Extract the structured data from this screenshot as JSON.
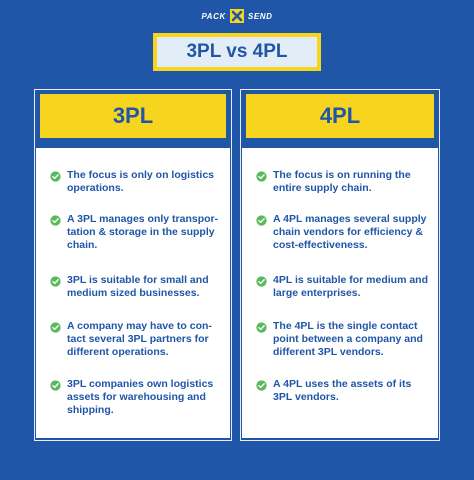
{
  "brand": {
    "left_word": "PACK",
    "right_word": "SEND",
    "logo_icon": "x-cross-icon"
  },
  "title": "3PL vs 4PL",
  "colors": {
    "background": "#1f56a8",
    "accent_yellow": "#f7d51f",
    "text_blue": "#1f56a8",
    "check_green": "#5bb85b"
  },
  "columns": [
    {
      "heading": "3PL",
      "items": [
        "The focus is only on logistics operations.",
        "A 3PL manages only transpor-tation & storage in the supply chain.",
        "3PL is suitable for small and medium sized businesses.",
        "A company may have to con-tact several 3PL partners for different operations.",
        "3PL companies own logistics assets for warehousing and shipping."
      ]
    },
    {
      "heading": "4PL",
      "items": [
        "The focus is on running the entire supply chain.",
        "A 4PL manages several supply chain vendors for efficiency & cost-effectiveness.",
        "4PL is suitable for medium and large enterprises.",
        "The 4PL is the single contact point between a company and different 3PL vendors.",
        "A 4PL uses the assets of its 3PL vendors."
      ]
    }
  ]
}
